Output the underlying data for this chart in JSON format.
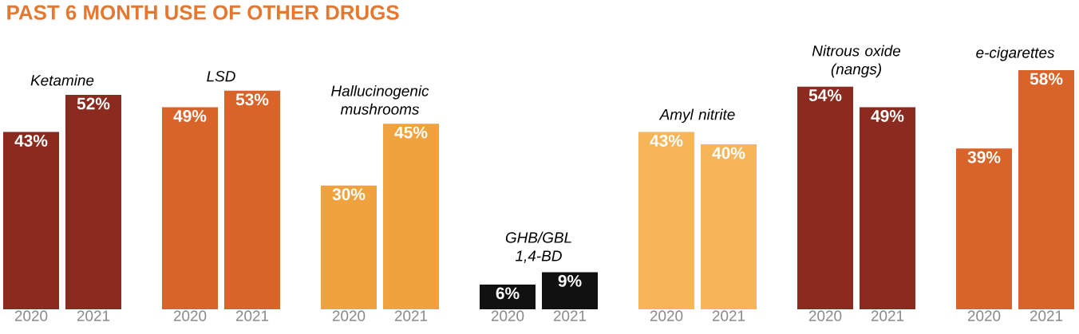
{
  "chart_data": [
    {
      "type": "bar",
      "title": "Ketamine",
      "categories": [
        "2020",
        "2021"
      ],
      "values": [
        43,
        52
      ],
      "value_labels": [
        "43%",
        "52%"
      ],
      "colors": [
        "#8b2a1e",
        "#8b2a1e"
      ],
      "annotations": [
        "PAST 6 MONTH USE OF OTHER DRUGS"
      ]
    },
    {
      "type": "bar",
      "title": "LSD",
      "categories": [
        "2020",
        "2021"
      ],
      "values": [
        49,
        53
      ],
      "value_labels": [
        "49%",
        "53%"
      ],
      "colors": [
        "#d9642a",
        "#d9642a"
      ]
    },
    {
      "type": "bar",
      "title": "Hallucinogenic mushrooms",
      "categories": [
        "2020",
        "2021"
      ],
      "values": [
        30,
        45
      ],
      "value_labels": [
        "30%",
        "45%"
      ],
      "colors": [
        "#f0a23e",
        "#f0a23e"
      ]
    },
    {
      "type": "bar",
      "title": "GHB/GBL 1,4-BD",
      "categories": [
        "2020",
        "2021"
      ],
      "values": [
        6,
        9
      ],
      "value_labels": [
        "6%",
        "9%"
      ],
      "colors": [
        "#111111",
        "#111111"
      ]
    },
    {
      "type": "bar",
      "title": "Amyl nitrite",
      "categories": [
        "2020",
        "2021"
      ],
      "values": [
        43,
        40
      ],
      "value_labels": [
        "43%",
        "40%"
      ],
      "colors": [
        "#f7b55a",
        "#f7b55a"
      ]
    },
    {
      "type": "bar",
      "title": "Nitrous oxide (nangs)",
      "categories": [
        "2020",
        "2021"
      ],
      "values": [
        54,
        49
      ],
      "value_labels": [
        "54%",
        "49%"
      ],
      "colors": [
        "#8b2a1e",
        "#8b2a1e"
      ]
    },
    {
      "type": "bar",
      "title": "e-cigarettes",
      "categories": [
        "2020",
        "2021"
      ],
      "values": [
        39,
        58
      ],
      "value_labels": [
        "39%",
        "58%"
      ],
      "colors": [
        "#d9642a",
        "#d9642a"
      ]
    }
  ]
}
